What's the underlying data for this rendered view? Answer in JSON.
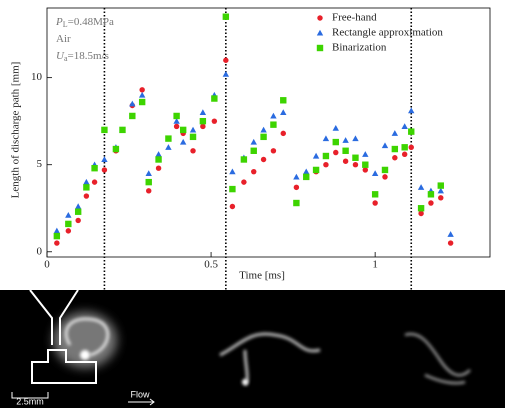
{
  "chart_data": {
    "type": "scatter",
    "xlabel": "Time [ms]",
    "ylabel": "Length of discharge path [mm]",
    "annotations": [
      {
        "symbol": "P",
        "subscript": "L",
        "text": "=0.48MPa"
      },
      {
        "symbol": "Air",
        "subscript": "",
        "text": ""
      },
      {
        "symbol": "U",
        "subscript": "a",
        "text": "=18.5m/s"
      }
    ],
    "xlim": [
      0,
      1.35
    ],
    "ylim": [
      -0.3,
      14
    ],
    "xticks": [
      0,
      0.5,
      1
    ],
    "yticks": [
      0,
      5,
      10
    ],
    "legend": "upper right",
    "markers": [
      0.175,
      0.545,
      1.11
    ],
    "x": [
      0.03,
      0.065,
      0.095,
      0.12,
      0.145,
      0.175,
      0.21,
      0.23,
      0.26,
      0.29,
      0.31,
      0.34,
      0.37,
      0.395,
      0.415,
      0.445,
      0.475,
      0.51,
      0.545,
      0.565,
      0.6,
      0.63,
      0.66,
      0.69,
      0.72,
      0.76,
      0.79,
      0.82,
      0.85,
      0.88,
      0.91,
      0.94,
      0.97,
      1.0,
      1.03,
      1.06,
      1.09,
      1.11,
      1.14,
      1.17,
      1.2,
      1.23
    ],
    "series": [
      {
        "name": "Free-hand",
        "color": "#e8202a",
        "marker": "circle",
        "values": [
          0.5,
          1.2,
          1.8,
          3.2,
          4.0,
          4.7,
          5.8,
          7.0,
          8.4,
          9.3,
          3.5,
          4.8,
          6.5,
          7.2,
          6.8,
          5.8,
          7.2,
          7.5,
          11.0,
          2.6,
          4.0,
          4.6,
          5.3,
          5.8,
          6.8,
          3.7,
          4.3,
          4.6,
          5.0,
          5.7,
          5.2,
          5.0,
          4.7,
          2.8,
          4.3,
          5.4,
          5.6,
          6.0,
          2.2,
          2.8,
          3.1,
          0.5
        ]
      },
      {
        "name": "Rectangle approximation",
        "color": "#2a6be0",
        "marker": "triangle",
        "values": [
          1.2,
          2.1,
          2.6,
          4.0,
          5.0,
          5.3,
          6.0,
          7.0,
          8.5,
          9.0,
          4.5,
          5.6,
          6.0,
          7.5,
          6.3,
          7.0,
          8.0,
          9.0,
          10.2,
          4.6,
          5.4,
          6.3,
          7.0,
          7.8,
          8.0,
          4.3,
          4.6,
          5.5,
          6.5,
          7.1,
          6.4,
          6.5,
          5.6,
          4.5,
          6.1,
          6.8,
          7.2,
          8.1,
          3.7,
          3.5,
          3.5,
          1.0
        ]
      },
      {
        "name": "Binarization",
        "color": "#3dd400",
        "marker": "square",
        "values": [
          0.9,
          1.6,
          2.3,
          3.7,
          4.8,
          7.0,
          5.9,
          7.0,
          7.8,
          8.6,
          4.0,
          5.3,
          6.5,
          7.8,
          7.0,
          6.6,
          7.5,
          8.8,
          13.5,
          3.6,
          5.3,
          5.8,
          6.6,
          7.3,
          8.7,
          2.8,
          4.3,
          4.7,
          5.5,
          6.3,
          5.8,
          5.4,
          5.0,
          3.3,
          4.7,
          5.9,
          6.0,
          6.9,
          2.5,
          3.3,
          3.8,
          null
        ]
      }
    ]
  },
  "photo": {
    "scale": "2.5mm",
    "flow": "Flow"
  }
}
